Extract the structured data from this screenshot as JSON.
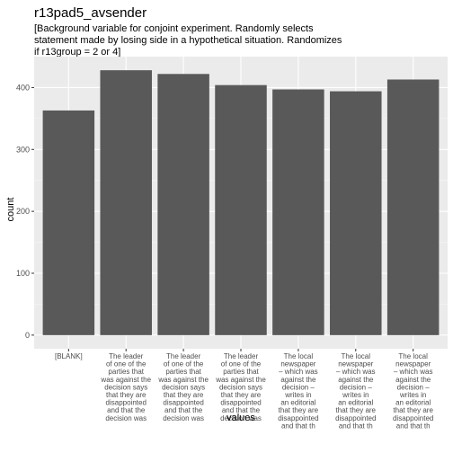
{
  "chart_data": {
    "type": "bar",
    "title": "r13pad5_avsender",
    "subtitle": "[Background variable for conjoint experiment. Randomly selects\nstatement made by losing side in a hypothetical situation. Randomizes\nif r13group = 2 or 4]",
    "xlabel": "values",
    "ylabel": "count",
    "categories": [
      "[BLANK]",
      "The leader\nof one of the\nparties that\nwas against the\ndecision says\nthat they are\ndisappointed\nand that the\ndecision was",
      "The leader\nof one of the\nparties that\nwas against the\ndecision says\nthat they are\ndisappointed\nand that the\ndecision was",
      "The leader\nof one of the\nparties that\nwas against the\ndecision says\nthat they are\ndisappointed\nand that the\ndecision was",
      "The local\nnewspaper\n– which was\nagainst the\ndecision –\nwrites in\nan editorial\nthat they are\ndisappointed\nand that th",
      "The local\nnewspaper\n– which was\nagainst the\ndecision –\nwrites in\nan editorial\nthat they are\ndisappointed\nand that th",
      "The local\nnewspaper\n– which was\nagainst the\ndecision –\nwrites in\nan editorial\nthat they are\ndisappointed\nand that th"
    ],
    "values": [
      363,
      428,
      422,
      404,
      397,
      394,
      413
    ],
    "ylim": [
      -22,
      450
    ],
    "yticks": [
      0,
      100,
      200,
      300,
      400
    ],
    "grid": true,
    "colors": {
      "bar": "#595959",
      "panel": "#ebebeb",
      "grid_major": "#ffffff",
      "grid_minor": "#f5f5f5"
    }
  }
}
